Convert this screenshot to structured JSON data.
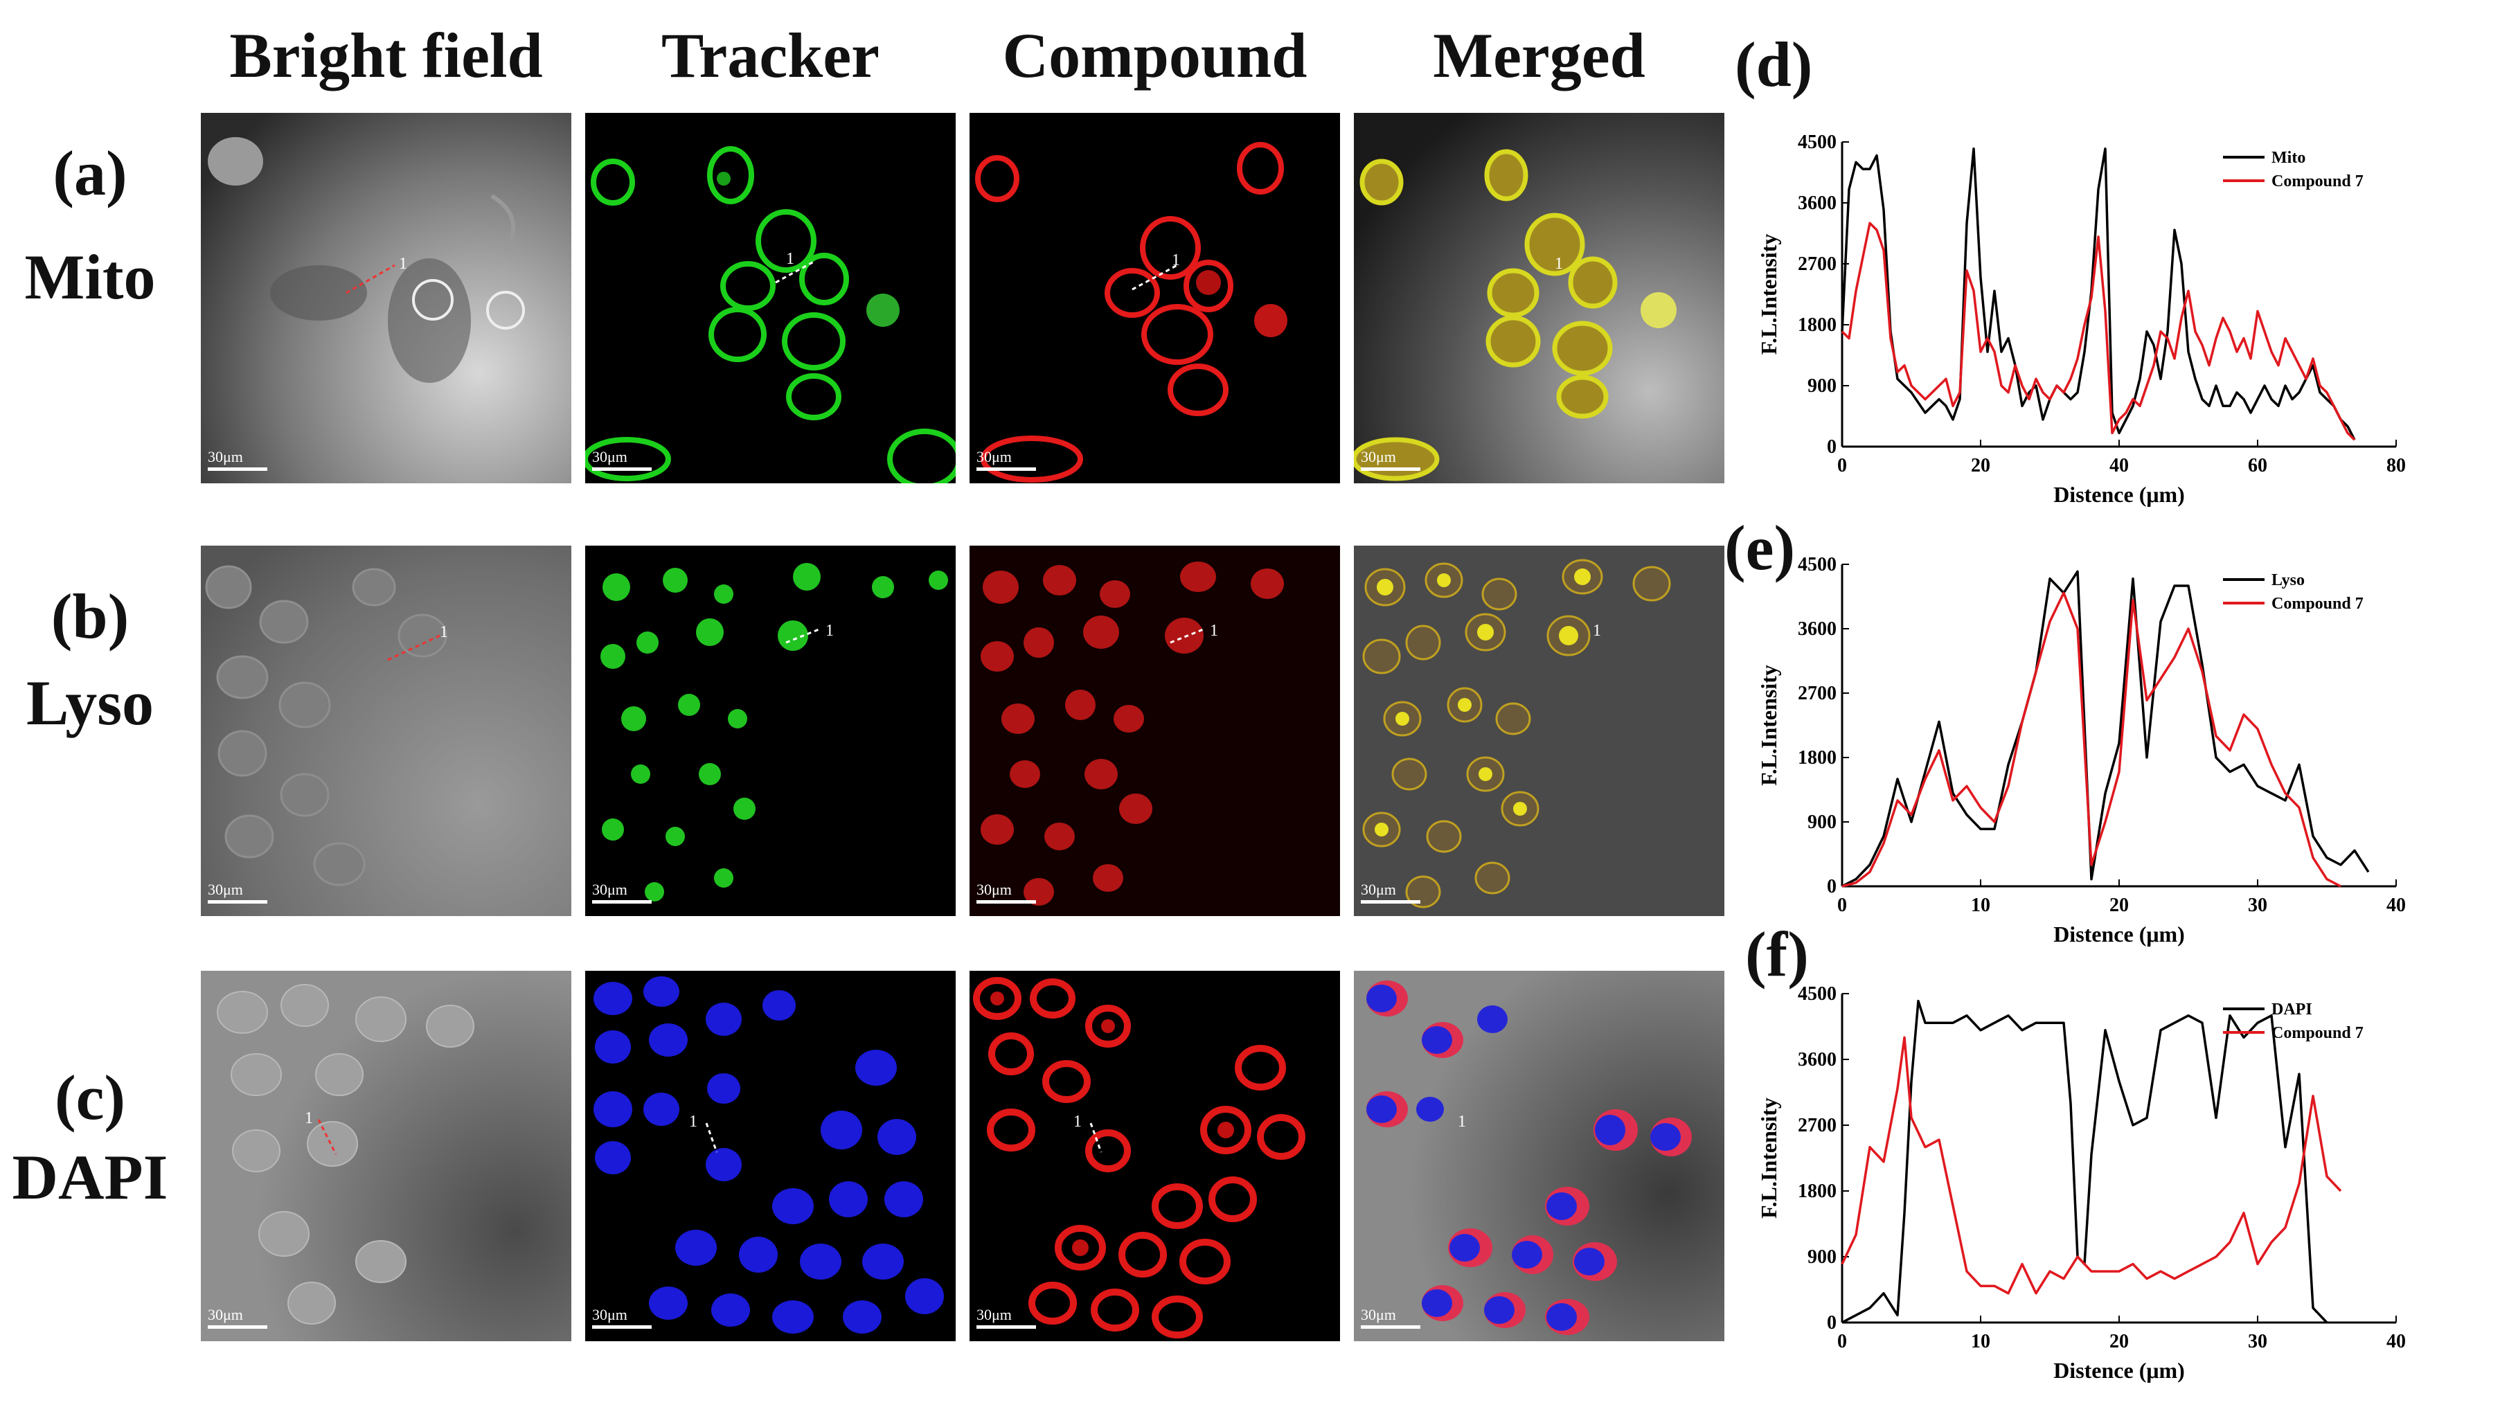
{
  "columns": [
    "Bright field",
    "Tracker",
    "Compound",
    "Merged"
  ],
  "rows": [
    {
      "letter": "(a)",
      "name": "Mito"
    },
    {
      "letter": "(b)",
      "name": "Lyso"
    },
    {
      "letter": "(c)",
      "name": "DAPI"
    }
  ],
  "scale_label": "30μm",
  "roi_label": "1",
  "panel_letters": [
    "(d)",
    "(e)",
    "(f)"
  ],
  "chart_data": [
    {
      "type": "line",
      "panel": "(d)",
      "xlabel": "Distence (μm)",
      "ylabel": "F.L.Intensity",
      "xlim": [
        0,
        80
      ],
      "ylim": [
        0,
        4500
      ],
      "xticks": [
        0,
        20,
        40,
        60,
        80
      ],
      "yticks": [
        0,
        900,
        1800,
        2700,
        3600,
        4500
      ],
      "legend": "top-right",
      "series": [
        {
          "name": "Mito",
          "color": "#000000",
          "x": [
            0,
            1,
            2,
            3,
            4,
            5,
            6,
            7,
            8,
            9,
            10,
            12,
            14,
            15,
            16,
            17,
            18,
            19,
            20,
            21,
            22,
            23,
            24,
            25,
            26,
            27,
            28,
            29,
            30,
            31,
            32,
            33,
            34,
            35,
            36,
            37,
            38,
            39,
            40,
            41,
            42,
            43,
            44,
            45,
            46,
            47,
            48,
            49,
            50,
            51,
            52,
            53,
            54,
            55,
            56,
            57,
            58,
            59,
            60,
            61,
            62,
            63,
            64,
            65,
            66,
            67,
            68,
            69,
            70,
            71,
            72,
            73,
            74
          ],
          "y": [
            1700,
            3800,
            4200,
            4100,
            4100,
            4300,
            3500,
            1700,
            1000,
            900,
            800,
            500,
            700,
            600,
            400,
            700,
            3300,
            4400,
            2500,
            1400,
            2300,
            1400,
            1600,
            1200,
            600,
            800,
            900,
            400,
            700,
            900,
            800,
            700,
            800,
            1400,
            2300,
            3800,
            4400,
            500,
            200,
            400,
            600,
            1000,
            1700,
            1500,
            1000,
            1700,
            3200,
            2700,
            1400,
            1000,
            700,
            600,
            900,
            600,
            600,
            800,
            700,
            500,
            700,
            900,
            700,
            600,
            900,
            700,
            800,
            1000,
            1200,
            800,
            700,
            600,
            400,
            300,
            100
          ]
        },
        {
          "name": "Compound 7",
          "color": "#e0191f",
          "x": [
            0,
            1,
            2,
            3,
            4,
            5,
            6,
            7,
            8,
            9,
            10,
            12,
            14,
            15,
            16,
            17,
            18,
            19,
            20,
            21,
            22,
            23,
            24,
            25,
            26,
            27,
            28,
            29,
            30,
            31,
            32,
            33,
            34,
            35,
            36,
            37,
            38,
            39,
            40,
            41,
            42,
            43,
            44,
            45,
            46,
            47,
            48,
            49,
            50,
            51,
            52,
            53,
            54,
            55,
            56,
            57,
            58,
            59,
            60,
            61,
            62,
            63,
            64,
            65,
            66,
            67,
            68,
            69,
            70,
            71,
            72,
            73,
            74
          ],
          "y": [
            1700,
            1600,
            2300,
            2800,
            3300,
            3200,
            2900,
            1600,
            1100,
            1200,
            900,
            700,
            900,
            1000,
            600,
            800,
            2600,
            2300,
            1400,
            1600,
            1400,
            900,
            800,
            1200,
            900,
            700,
            1000,
            800,
            700,
            900,
            800,
            1000,
            1300,
            1800,
            2200,
            3100,
            2000,
            200,
            400,
            500,
            700,
            600,
            900,
            1200,
            1700,
            1600,
            1300,
            1900,
            2300,
            1700,
            1500,
            1200,
            1600,
            1900,
            1700,
            1400,
            1600,
            1300,
            2000,
            1700,
            1400,
            1200,
            1600,
            1400,
            1200,
            1000,
            1300,
            900,
            800,
            600,
            400,
            200,
            100
          ]
        }
      ]
    },
    {
      "type": "line",
      "panel": "(e)",
      "xlabel": "Distence (μm)",
      "ylabel": "F.L.Intensity",
      "xlim": [
        0,
        40
      ],
      "ylim": [
        0,
        4500
      ],
      "xticks": [
        0,
        10,
        20,
        30,
        40
      ],
      "yticks": [
        0,
        900,
        1800,
        2700,
        3600,
        4500
      ],
      "legend": "top-right",
      "series": [
        {
          "name": "Lyso",
          "color": "#000000",
          "x": [
            0,
            1,
            2,
            3,
            4,
            5,
            6,
            7,
            8,
            9,
            10,
            11,
            12,
            13,
            14,
            15,
            16,
            17,
            18,
            19,
            20,
            21,
            22,
            23,
            24,
            25,
            26,
            27,
            28,
            29,
            30,
            31,
            32,
            33,
            34,
            35,
            36,
            37,
            38
          ],
          "y": [
            0,
            100,
            300,
            700,
            1500,
            900,
            1600,
            2300,
            1300,
            1000,
            800,
            800,
            1700,
            2300,
            3000,
            4300,
            4100,
            4400,
            100,
            1300,
            2000,
            4300,
            1800,
            3700,
            4200,
            4200,
            3100,
            1800,
            1600,
            1700,
            1400,
            1300,
            1200,
            1700,
            700,
            400,
            300,
            500,
            200
          ]
        },
        {
          "name": "Compound 7",
          "color": "#e0191f",
          "x": [
            0,
            1,
            2,
            3,
            4,
            5,
            6,
            7,
            8,
            9,
            10,
            11,
            12,
            13,
            14,
            15,
            16,
            17,
            18,
            19,
            20,
            21,
            22,
            23,
            24,
            25,
            26,
            27,
            28,
            29,
            30,
            31,
            32,
            33,
            34,
            35,
            36
          ],
          "y": [
            0,
            50,
            200,
            600,
            1200,
            1000,
            1500,
            1900,
            1200,
            1400,
            1100,
            900,
            1400,
            2300,
            3000,
            3700,
            4100,
            3600,
            300,
            900,
            1600,
            4000,
            2600,
            2900,
            3200,
            3600,
            3000,
            2100,
            1900,
            2400,
            2200,
            1700,
            1300,
            1100,
            400,
            100,
            0
          ]
        }
      ]
    },
    {
      "type": "line",
      "panel": "(f)",
      "xlabel": "Distence (μm)",
      "ylabel": "F.L.Intensity",
      "xlim": [
        0,
        40
      ],
      "ylim": [
        0,
        4500
      ],
      "xticks": [
        0,
        10,
        20,
        30,
        40
      ],
      "yticks": [
        0,
        900,
        1800,
        2700,
        3600,
        4500
      ],
      "legend": "top-right",
      "series": [
        {
          "name": "DAPI",
          "color": "#000000",
          "x": [
            0,
            1,
            2,
            3,
            4,
            4.5,
            5,
            5.5,
            6,
            7,
            8,
            9,
            10,
            11,
            12,
            13,
            14,
            15,
            16,
            16.5,
            17,
            17.5,
            18,
            19,
            20,
            21,
            22,
            23,
            24,
            25,
            26,
            27,
            28,
            29,
            30,
            31,
            32,
            33,
            34,
            35
          ],
          "y": [
            0,
            100,
            200,
            400,
            100,
            1500,
            3300,
            4400,
            4100,
            4100,
            4100,
            4200,
            4000,
            4100,
            4200,
            4000,
            4100,
            4100,
            4100,
            3000,
            900,
            800,
            2300,
            4000,
            3300,
            2700,
            2800,
            4000,
            4100,
            4200,
            4100,
            2800,
            4200,
            3900,
            4100,
            4200,
            2400,
            3400,
            200,
            0
          ]
        },
        {
          "name": "Compound 7",
          "color": "#e0191f",
          "x": [
            0,
            1,
            2,
            3,
            4,
            4.5,
            5,
            6,
            7,
            8,
            9,
            10,
            11,
            12,
            13,
            14,
            15,
            16,
            17,
            18,
            19,
            20,
            21,
            22,
            23,
            24,
            25,
            26,
            27,
            28,
            29,
            30,
            31,
            32,
            33,
            34,
            35,
            36
          ],
          "y": [
            800,
            1200,
            2400,
            2200,
            3200,
            3900,
            2800,
            2400,
            2500,
            1600,
            700,
            500,
            500,
            400,
            800,
            400,
            700,
            600,
            900,
            700,
            700,
            700,
            800,
            600,
            700,
            600,
            700,
            800,
            900,
            1100,
            1500,
            800,
            1100,
            1300,
            1900,
            3100,
            2000,
            1800
          ]
        }
      ]
    }
  ]
}
